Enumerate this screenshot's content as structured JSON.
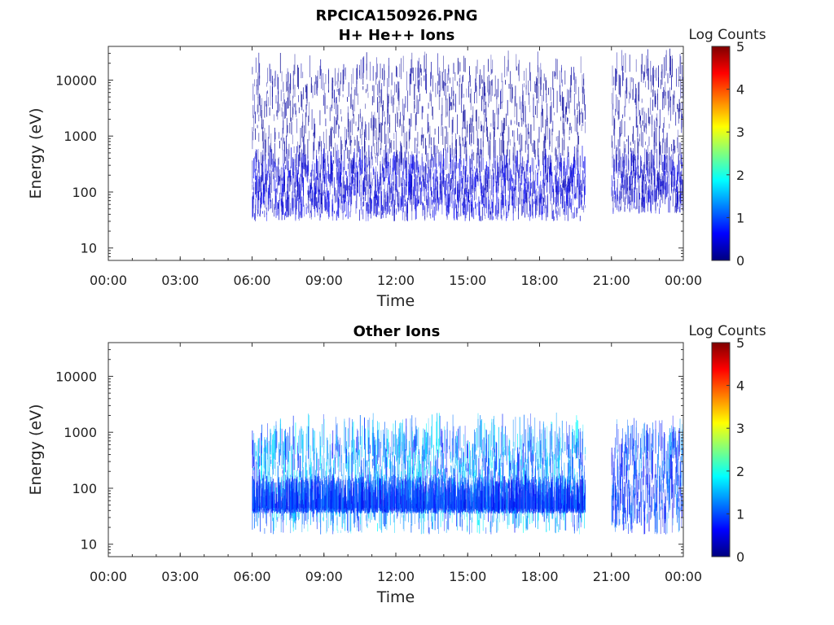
{
  "figure": {
    "title_line1": "RPCICA150926.PNG"
  },
  "chart_data": [
    {
      "type": "heatmap",
      "title": "H+ He++ Ions",
      "xlabel": "Time",
      "ylabel": "Energy (eV)",
      "x_ticks": [
        "00:00",
        "03:00",
        "06:00",
        "09:00",
        "12:00",
        "15:00",
        "18:00",
        "21:00",
        "00:00"
      ],
      "x_range_hours": [
        0,
        24
      ],
      "y_scale": "log",
      "y_ticks": [
        "10",
        "100",
        "1000",
        "10000"
      ],
      "y_range_eV": [
        6,
        40000
      ],
      "colorbar": {
        "label": "Log Counts",
        "ticks": [
          "0",
          "1",
          "2",
          "3",
          "4",
          "5"
        ],
        "range": [
          0,
          5
        ],
        "colormap": "jet"
      },
      "data_gaps_hours": [
        [
          0,
          6.0
        ],
        [
          19.9,
          21.0
        ]
      ],
      "description_points": [
        {
          "t_start": 6.0,
          "t_end": 19.9,
          "energy_band_eV": [
            30,
            300
          ],
          "log_counts_peak": 0.6
        },
        {
          "t_start": 21.0,
          "t_end": 24.0,
          "energy_band_eV": [
            40,
            300
          ],
          "log_counts_peak": 0.5
        },
        {
          "t_start": 6.0,
          "t_end": 24.0,
          "energy_band_eV": [
            300,
            15000
          ],
          "log_counts_peak": 0.2
        }
      ]
    },
    {
      "type": "heatmap",
      "title": "Other Ions",
      "xlabel": "Time",
      "ylabel": "Energy (eV)",
      "x_ticks": [
        "00:00",
        "03:00",
        "06:00",
        "09:00",
        "12:00",
        "15:00",
        "18:00",
        "21:00",
        "00:00"
      ],
      "x_range_hours": [
        0,
        24
      ],
      "y_scale": "log",
      "y_ticks": [
        "10",
        "100",
        "1000",
        "10000"
      ],
      "y_range_eV": [
        6,
        40000
      ],
      "colorbar": {
        "label": "Log Counts",
        "ticks": [
          "0",
          "1",
          "2",
          "3",
          "4",
          "5"
        ],
        "range": [
          0,
          5
        ],
        "colormap": "jet"
      },
      "data_gaps_hours": [
        [
          0,
          6.0
        ],
        [
          19.9,
          21.0
        ]
      ],
      "description_points": [
        {
          "t_start": 6.0,
          "t_end": 19.9,
          "energy_band_eV": [
            15,
            600
          ],
          "log_counts_peak": 1.8
        },
        {
          "t_start": 6.0,
          "t_end": 19.9,
          "energy_band_eV": [
            35,
            45
          ],
          "log_counts_peak": 1.2
        },
        {
          "t_start": 21.0,
          "t_end": 24.0,
          "energy_band_eV": [
            15,
            600
          ],
          "log_counts_peak": 1.3
        }
      ]
    }
  ]
}
